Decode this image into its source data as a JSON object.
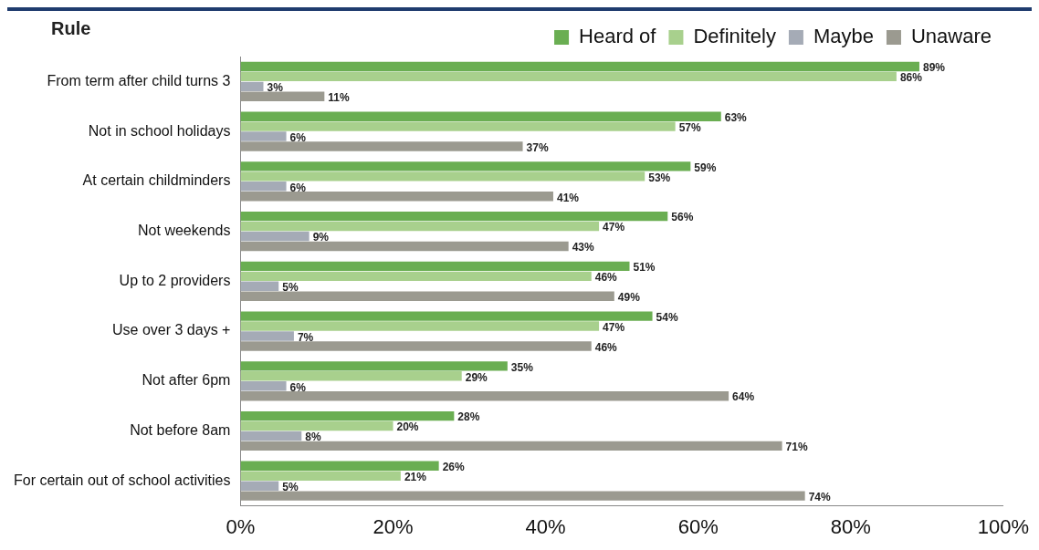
{
  "chart_data": {
    "type": "bar",
    "orientation": "horizontal",
    "ylabel": "Rule",
    "categories": [
      "From term after child turns 3",
      "Not in school holidays",
      "At certain childminders",
      "Not weekends",
      "Up to 2 providers",
      "Use over 3 days +",
      "Not after 6pm",
      "Not before 8am",
      "For certain out of school activities"
    ],
    "series": [
      {
        "name": "Heard of",
        "color": "#6aae52",
        "values": [
          89,
          63,
          59,
          56,
          51,
          54,
          35,
          28,
          26
        ],
        "value_labels": [
          "89%",
          "63%",
          "59%",
          "56%",
          "51%",
          "54%",
          "35%",
          "28%",
          "26%"
        ]
      },
      {
        "name": "Definitely",
        "color": "#a8d08d",
        "values": [
          86,
          57,
          53,
          47,
          46,
          47,
          29,
          20,
          21
        ],
        "value_labels": [
          "86%",
          "57%",
          "53%",
          "47%",
          "46%",
          "47%",
          "29%",
          "20%",
          "21%"
        ]
      },
      {
        "name": "Maybe",
        "color": "#a5abb6",
        "values": [
          3,
          6,
          6,
          9,
          5,
          7,
          6,
          8,
          5
        ],
        "value_labels": [
          "3%",
          "6%",
          "6%",
          "9%",
          "5%",
          "7%",
          "6%",
          "8%",
          "5%"
        ]
      },
      {
        "name": "Unaware",
        "color": "#9b9a90",
        "values": [
          11,
          37,
          41,
          43,
          49,
          46,
          64,
          71,
          74
        ],
        "value_labels": [
          "11%",
          "37%",
          "41%",
          "43%",
          "49%",
          "46%",
          "64%",
          "71%",
          "74%"
        ]
      }
    ],
    "xlim": [
      0,
      100
    ],
    "xticks": [
      {
        "value": 0,
        "label": "0%"
      },
      {
        "value": 20,
        "label": "20%"
      },
      {
        "value": 40,
        "label": "40%"
      },
      {
        "value": 60,
        "label": "60%"
      },
      {
        "value": 80,
        "label": "80%"
      },
      {
        "value": 100,
        "label": "100%"
      }
    ],
    "grid": false,
    "legend": "top right"
  }
}
